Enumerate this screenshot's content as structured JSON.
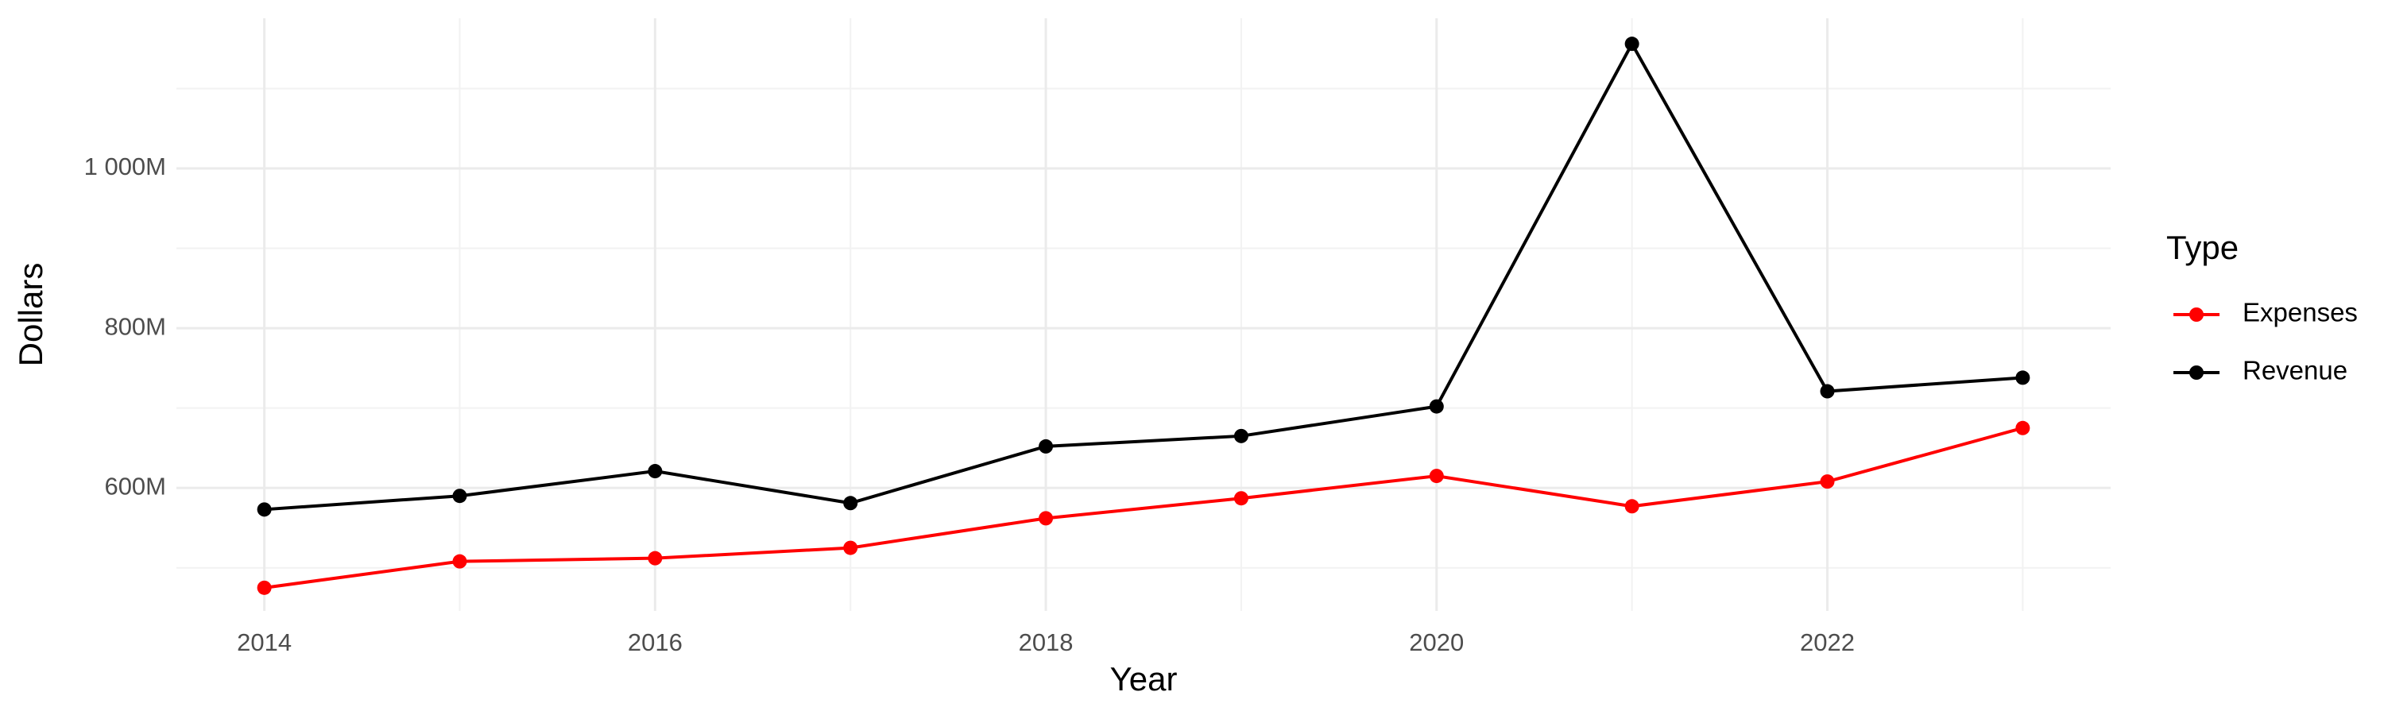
{
  "chart_data": {
    "type": "line",
    "x_label": "Year",
    "y_label": "Dollars",
    "x": [
      2014,
      2015,
      2016,
      2017,
      2018,
      2019,
      2020,
      2021,
      2022,
      2023
    ],
    "series": [
      {
        "name": "Expenses",
        "color": "#ff0000",
        "values": [
          475000000,
          508000000,
          512000000,
          525000000,
          562000000,
          587000000,
          615000000,
          577000000,
          608000000,
          675000000
        ]
      },
      {
        "name": "Revenue",
        "color": "#000000",
        "values": [
          573000000,
          590000000,
          621000000,
          581000000,
          652000000,
          665000000,
          702000000,
          1156000000,
          721000000,
          738000000
        ]
      }
    ],
    "xlim": [
      2013.55,
      2023.45
    ],
    "xticks": [
      2014,
      2016,
      2018,
      2020,
      2022
    ],
    "xminor": [
      2015,
      2017,
      2019,
      2021,
      2023
    ],
    "ylim": [
      446000000,
      1188000000
    ],
    "yticks": [
      {
        "value": 600000000,
        "label": "600M"
      },
      {
        "value": 800000000,
        "label": "800M"
      },
      {
        "value": 1000000000,
        "label": "1 000M"
      }
    ],
    "yminor": [
      500000000,
      700000000,
      900000000,
      1100000000
    ],
    "grid": true,
    "legend_title": "Type",
    "legend_position": "right"
  }
}
